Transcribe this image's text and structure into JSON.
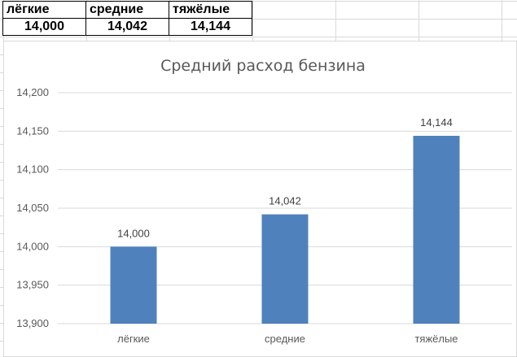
{
  "table": {
    "headers": [
      "лёгкие",
      "средние",
      "тяжёлые"
    ],
    "values": [
      "14,000",
      "14,042",
      "14,144"
    ]
  },
  "chart_data": {
    "type": "bar",
    "title": "Средний расход бензина",
    "categories": [
      "лёгкие",
      "средние",
      "тяжёлые"
    ],
    "values": [
      14.0,
      14.042,
      14.144
    ],
    "data_labels": [
      "14,000",
      "14,042",
      "14,144"
    ],
    "ylim": [
      13.9,
      14.2
    ],
    "yticks": [
      13.9,
      13.95,
      14.0,
      14.05,
      14.1,
      14.15,
      14.2
    ],
    "ytick_labels": [
      "13,900",
      "13,950",
      "14,000",
      "14,050",
      "14,100",
      "14,150",
      "14,200"
    ],
    "grid": true,
    "bar_color": "#4f81bd"
  }
}
